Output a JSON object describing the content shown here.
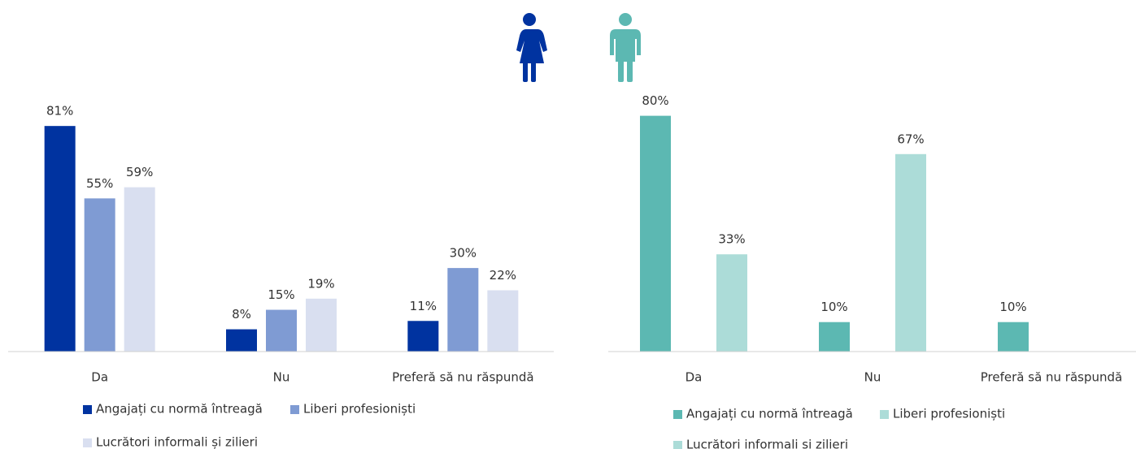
{
  "chart_data": [
    {
      "type": "bar",
      "categories": [
        "Da",
        "Nu",
        "Preferă să nu răspundă"
      ],
      "ylim": [
        0,
        100
      ],
      "series": [
        {
          "name": "Angajați cu normă întreagă",
          "color": "#0033a0",
          "values": [
            81,
            8,
            11
          ],
          "value_labels": [
            "81%",
            "8%",
            "11%"
          ]
        },
        {
          "name": "Liberi profesioniști",
          "color": "#7f9bd3",
          "values": [
            55,
            15,
            30
          ],
          "value_labels": [
            "55%",
            "15%",
            "30%"
          ]
        },
        {
          "name": "Lucrători informali și zilieri",
          "color": "#d9dff0",
          "values": [
            59,
            19,
            22
          ],
          "value_labels": [
            "59%",
            "19%",
            "22%"
          ]
        }
      ]
    },
    {
      "type": "bar",
      "categories": [
        "Da",
        "Nu",
        "Preferă să nu răspundă"
      ],
      "ylim": [
        0,
        100
      ],
      "series": [
        {
          "name": "Angajați cu normă întreagă",
          "color": "#5cb8b2",
          "values": [
            80,
            10,
            10
          ],
          "value_labels": [
            "80%",
            "10%",
            "10%"
          ]
        },
        {
          "name": "Liberi profesioniști",
          "color": "#acdcd8",
          "values": [
            null,
            null,
            null
          ]
        },
        {
          "name": "Lucrători informali și zilieri",
          "color": "#acdcd8",
          "values": [
            33,
            67,
            null
          ],
          "value_labels": [
            "33%",
            "67%",
            null
          ]
        }
      ]
    }
  ]
}
